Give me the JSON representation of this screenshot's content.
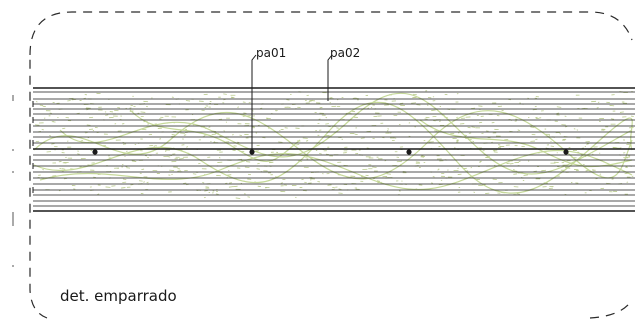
{
  "callouts": [
    {
      "label": "pa01"
    },
    {
      "label": "pa02"
    }
  ],
  "title": "det. emparrado",
  "colors": {
    "line": "#1a1a1a",
    "hatch": "#b8c98a",
    "vine": "#c6d99a",
    "frame": "#2a2a2a",
    "background": "#ffffff"
  }
}
